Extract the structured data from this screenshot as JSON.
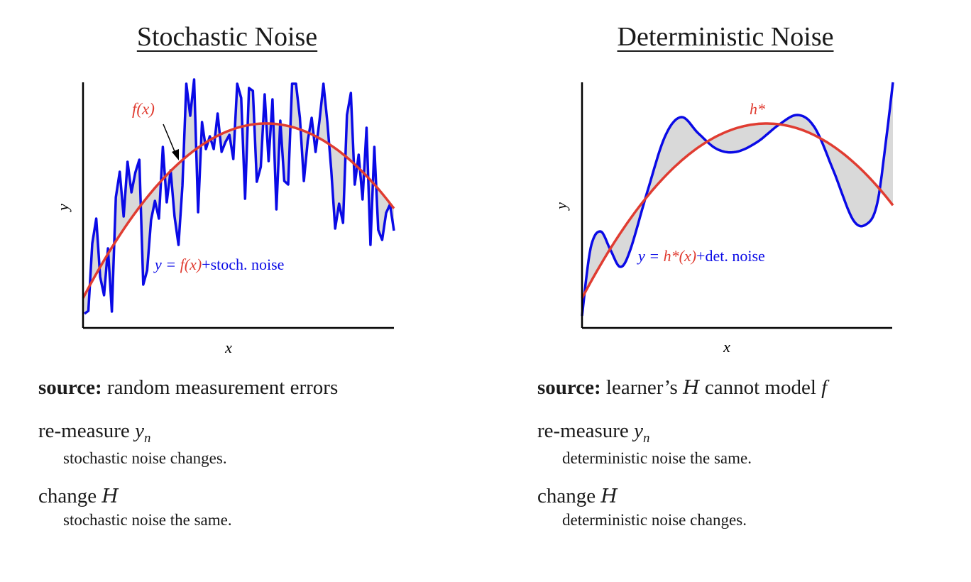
{
  "panels": [
    {
      "title": "Stochastic Noise",
      "xlabel": "x",
      "ylabel": "y",
      "curve_label": "f(x)",
      "eq": {
        "lhs": "y = ",
        "fn": "f(x)",
        "rest": "+stoch. noise"
      },
      "source_bold": "source:",
      "source_text": "random measurement errors",
      "row1_text": "re-measure ",
      "row1_var": "y",
      "row1_sub": "n",
      "row1_detail": "stochastic noise changes.",
      "row2_text": "change ",
      "row2_sym": "H",
      "row2_detail": "stochastic noise the same."
    },
    {
      "title": "Deterministic Noise",
      "xlabel": "x",
      "ylabel": "y",
      "curve_label": "h*",
      "eq": {
        "lhs": "y = ",
        "fn": "h*(x)",
        "rest": "+det. noise"
      },
      "source_bold": "source:",
      "source_pre": "learner’s ",
      "source_sym": "H",
      "source_mid": " cannot model ",
      "source_var": "f",
      "row1_text": "re-measure ",
      "row1_var": "y",
      "row1_sub": "n",
      "row1_detail": "deterministic noise the same.",
      "row2_text": "change ",
      "row2_sym": "H",
      "row2_detail": "deterministic noise changes."
    }
  ],
  "colors": {
    "target": "#e03c31",
    "data": "#0a0ae6",
    "fill": "#d9d9d9",
    "axis": "#000000"
  }
}
